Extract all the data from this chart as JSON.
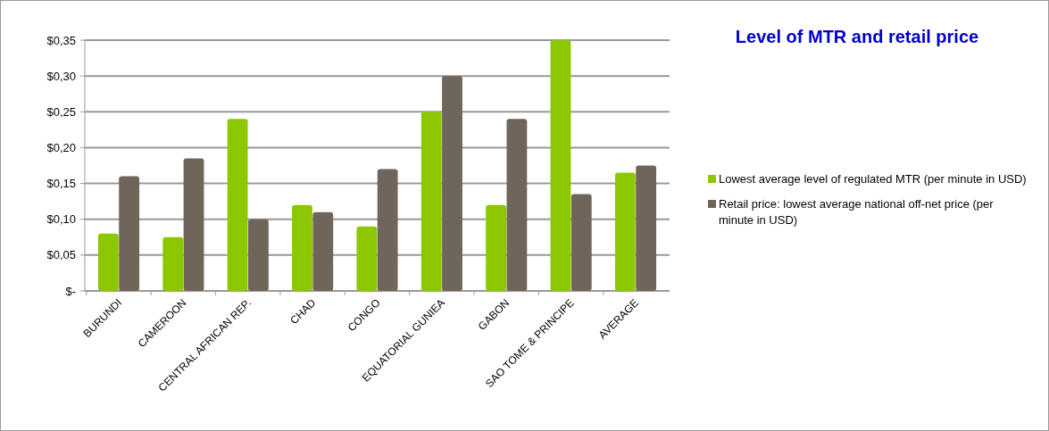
{
  "chart_data": {
    "type": "bar",
    "title": "Level of MTR and retail price",
    "categories": [
      "BURUNDI",
      "CAMEROON",
      "CENTRAL AFRICAN REP.",
      "CHAD",
      "CONGO",
      "EQUATORIAL GUNIEA",
      "GABON",
      "SAO TOME & PRINCIPE",
      "AVERAGE"
    ],
    "series": [
      {
        "name": "Lowest average level of regulated MTR (per minute in USD)",
        "color": "#8cc800",
        "values": [
          0.08,
          0.075,
          0.24,
          0.12,
          0.09,
          0.25,
          0.12,
          0.35,
          0.165
        ]
      },
      {
        "name": "Retail price: lowest average national off-net price (per minute in USD)",
        "color": "#6f655a",
        "values": [
          0.16,
          0.185,
          0.1,
          0.11,
          0.17,
          0.3,
          0.24,
          0.135,
          0.175
        ]
      }
    ],
    "ylim": [
      0,
      0.35
    ],
    "yticks": [
      {
        "value": 0,
        "label": "$-"
      },
      {
        "value": 0.05,
        "label": "$0,05"
      },
      {
        "value": 0.1,
        "label": "$0,10"
      },
      {
        "value": 0.15,
        "label": "$0,15"
      },
      {
        "value": 0.2,
        "label": "$0,20"
      },
      {
        "value": 0.25,
        "label": "$0,25"
      },
      {
        "value": 0.3,
        "label": "$0,30"
      },
      {
        "value": 0.35,
        "label": "$0,35"
      }
    ],
    "grid": "y",
    "legend": "right"
  }
}
